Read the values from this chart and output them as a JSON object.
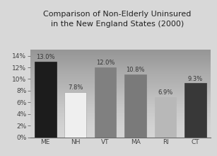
{
  "categories": [
    "ME",
    "NH",
    "VT",
    "MA",
    "RI",
    "CT"
  ],
  "values": [
    13.0,
    7.8,
    12.0,
    10.8,
    6.9,
    9.3
  ],
  "bar_colors": [
    "#1c1c1c",
    "#efefef",
    "#808080",
    "#7a7a7a",
    "#b8b8b8",
    "#383838"
  ],
  "bar_edge_colors": [
    "#1c1c1c",
    "#aaaaaa",
    "#808080",
    "#7a7a7a",
    "#b8b8b8",
    "#383838"
  ],
  "title_line1": "Comparison of Non-Elderly Uninsured",
  "title_line2": "in the New England States (2000)",
  "ylim": [
    0,
    15
  ],
  "yticks": [
    0,
    2,
    4,
    6,
    8,
    10,
    12,
    14
  ],
  "ytick_labels": [
    "0%",
    "2%",
    "4%",
    "6%",
    "8%",
    "10%",
    "12%",
    "14%"
  ],
  "fig_bg_color": "#d8d8d8",
  "plot_bg_color_top": "#e8e8e8",
  "plot_bg_color_bottom": "#b8b8b8",
  "title_fontsize": 8.0,
  "label_fontsize": 6.5,
  "tick_fontsize": 6.5,
  "value_fontsize": 6.0
}
